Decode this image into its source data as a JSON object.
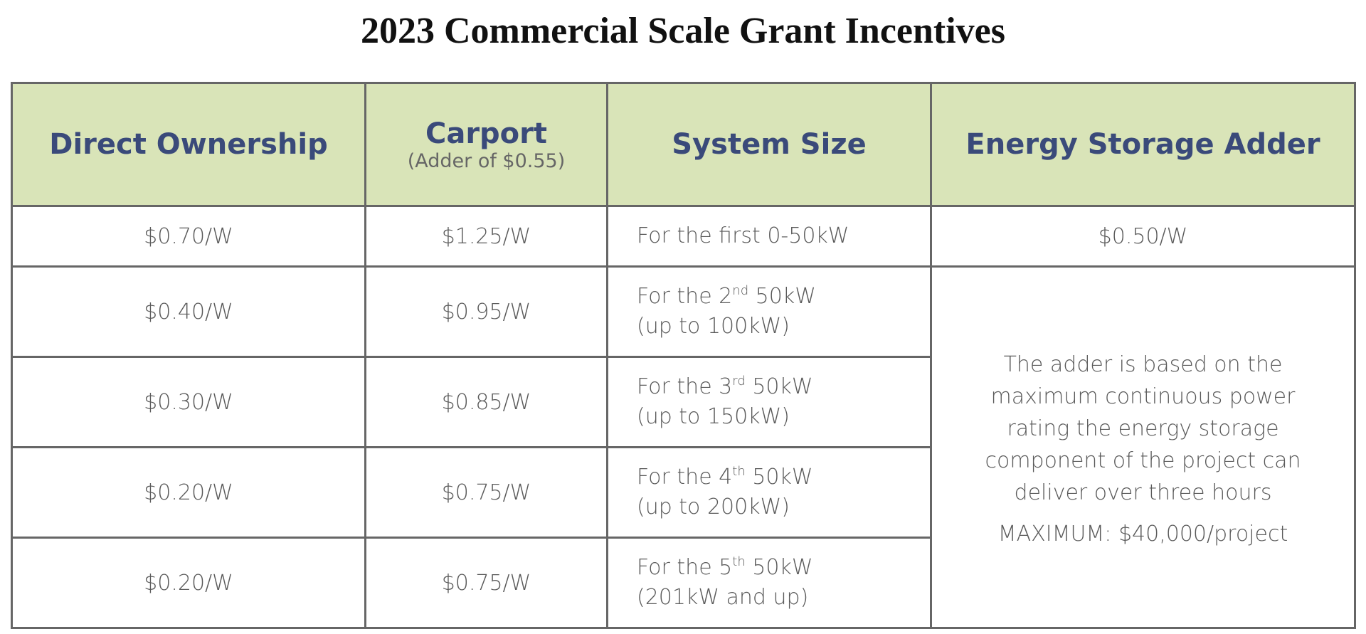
{
  "title": "2023 Commercial Scale Grant Incentives",
  "table": {
    "headers": [
      {
        "text": "Direct Ownership"
      },
      {
        "text": "Carport",
        "note": "(Adder of $0.55)"
      },
      {
        "text": "System Size"
      },
      {
        "text": "Energy Storage Adder"
      }
    ],
    "rows": [
      {
        "ownership": "$0.70/W",
        "carport": "$1.25/W",
        "system": {
          "text": "For the first 0-50kW"
        },
        "storage": "$0.50/W"
      },
      {
        "ownership": "$0.40/W",
        "carport": "$0.95/W",
        "system": {
          "text": "For the 2",
          "sup": "nd",
          "rest": " 50kW",
          "line2": "(up to 100kW)"
        }
      },
      {
        "ownership": "$0.30/W",
        "carport": "$0.85/W",
        "system": {
          "text": "For the 3",
          "sup": "rd",
          "rest": " 50kW",
          "line2": "(up to 150kW)"
        }
      },
      {
        "ownership": "$0.20/W",
        "carport": "$0.75/W",
        "system": {
          "text": "For the 4",
          "sup": "th",
          "rest": " 50kW",
          "line2": "(up to 200kW)"
        }
      },
      {
        "ownership": "$0.20/W",
        "carport": "$0.75/W",
        "system": {
          "text": "For the 5",
          "sup": "th",
          "rest": " 50kW",
          "line2": "(201kW and up)"
        }
      }
    ],
    "storage_note": {
      "description": "The adder is based on the maximum continuous power rating the energy storage component of the project can deliver over three hours",
      "maximum": "MAXIMUM: $40,000/project"
    }
  }
}
